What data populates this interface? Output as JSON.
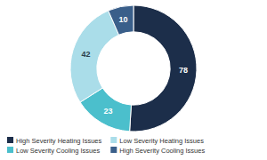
{
  "chart_data": {
    "type": "donut",
    "categories": [
      "High Severity Heating Issues",
      "Low Severity Cooling Issues",
      "Low Severity Heating Issues",
      "High Severity Cooling Issues"
    ],
    "values": [
      78,
      23,
      42,
      10
    ],
    "colors": [
      "#1c2e4a",
      "#4bbfcc",
      "#aadde9",
      "#3a5f8a"
    ],
    "data_labels": true,
    "legend": "lower left"
  }
}
